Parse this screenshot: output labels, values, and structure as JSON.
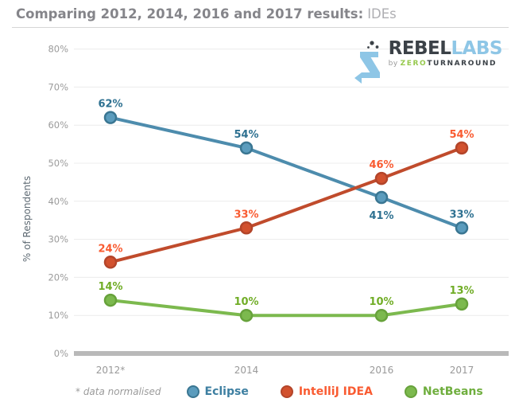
{
  "header": {
    "title_bold": "Comparing 2012, 2014, 2016 and 2017 results:",
    "title_light": "IDEs"
  },
  "logo": {
    "brand_dark": "REBEL",
    "brand_light": "LABS",
    "byline_prefix": "by",
    "byline_green": "ZERO",
    "byline_dark": "TURNAROUND"
  },
  "chart_data": {
    "type": "line",
    "title": "Comparing 2012, 2014, 2016 and 2017 results: IDEs",
    "categories": [
      "2012*",
      "2014",
      "2016",
      "2017"
    ],
    "x_years": [
      2012,
      2014,
      2016,
      2017
    ],
    "ylabel": "% of Respondents",
    "ylim": [
      0,
      80
    ],
    "ytick_labels": [
      "0%",
      "10%",
      "20%",
      "30%",
      "40%",
      "50%",
      "60%",
      "70%",
      "80%"
    ],
    "grid": true,
    "legend_position": "bottom",
    "footnote": "* data normalised",
    "series": [
      {
        "name": "Eclipse",
        "values": [
          62,
          54,
          41,
          33
        ],
        "point_labels": [
          "62%",
          "54%",
          "41%",
          "33%"
        ],
        "label_side": [
          "above",
          "above",
          "below",
          "above"
        ],
        "colors": {
          "line": "#4d8cad",
          "dot_fill": "#5b9cbd",
          "dot_stroke": "#3a7692",
          "label": "#2e7191",
          "legend_text": "#3d7fa1"
        }
      },
      {
        "name": "IntelliJ IDEA",
        "values": [
          24,
          33,
          46,
          54
        ],
        "point_labels": [
          "24%",
          "33%",
          "46%",
          "54%"
        ],
        "label_side": [
          "above",
          "above",
          "above",
          "above"
        ],
        "colors": {
          "line": "#c04b2c",
          "dot_fill": "#d2512e",
          "dot_stroke": "#b3452a",
          "label": "#f95b31",
          "legend_text": "#f95b31"
        }
      },
      {
        "name": "NetBeans",
        "values": [
          14,
          10,
          10,
          13
        ],
        "point_labels": [
          "14%",
          "10%",
          "10%",
          "13%"
        ],
        "label_side": [
          "above",
          "above",
          "above",
          "above"
        ],
        "colors": {
          "line": "#7cb94e",
          "dot_fill": "#7cb94e",
          "dot_stroke": "#67a23b",
          "label": "#71ad27",
          "legend_text": "#6fae3e"
        }
      }
    ],
    "style": {
      "grid_color": "#ececec",
      "baseline_color": "#b9b9b9",
      "tick_label_color": "#9b9b9b",
      "x_label_color": "#999999",
      "y_axis_title_color": "#5e6a73"
    }
  }
}
